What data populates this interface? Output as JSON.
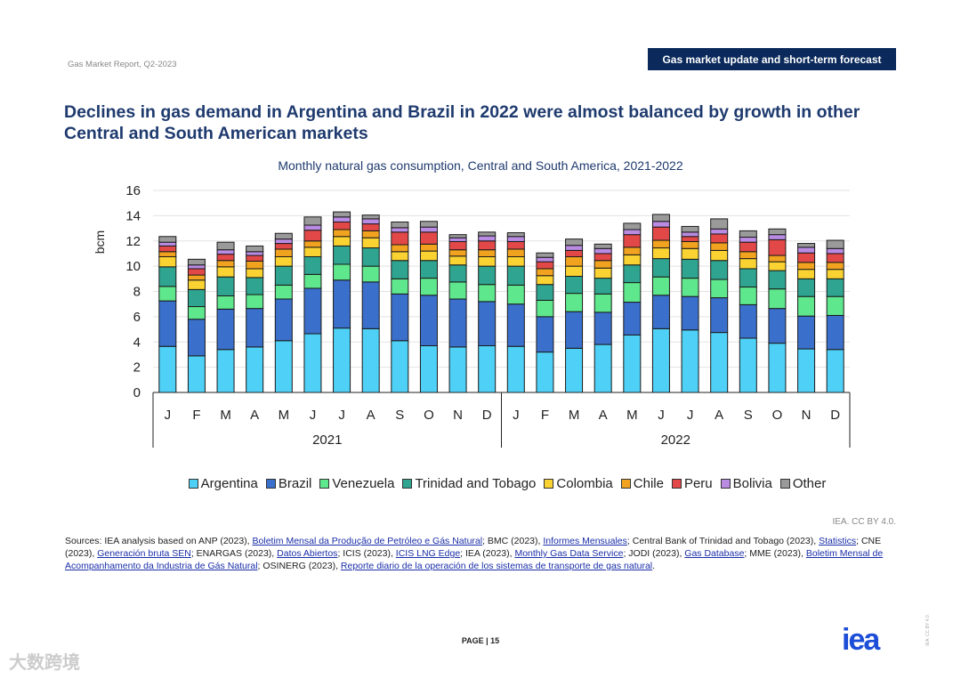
{
  "header": {
    "report": "Gas Market Report, Q2-2023",
    "section": "Gas market update and short-term forecast"
  },
  "title": "Declines in gas demand in Argentina and Brazil in 2022 were almost balanced by growth in other Central and South American markets",
  "chart_data": {
    "type": "bar",
    "stacked": true,
    "title": "Monthly natural gas consumption, Central and South America, 2021-2022",
    "xlabel": "",
    "ylabel": "bcm",
    "ylim": [
      0,
      16
    ],
    "yticks": [
      0,
      2,
      4,
      6,
      8,
      10,
      12,
      14,
      16
    ],
    "grid": true,
    "legend_position": "bottom",
    "categories": [
      "J",
      "F",
      "M",
      "A",
      "M",
      "J",
      "J",
      "A",
      "S",
      "O",
      "N",
      "D",
      "J",
      "F",
      "M",
      "A",
      "M",
      "J",
      "J",
      "A",
      "S",
      "O",
      "N",
      "D"
    ],
    "groups": [
      {
        "label": "2021",
        "span": 12
      },
      {
        "label": "2022",
        "span": 12
      }
    ],
    "series": [
      {
        "name": "Argentina",
        "color": "#4fd0f6",
        "values": [
          3.65,
          2.9,
          3.4,
          3.6,
          4.1,
          4.65,
          5.1,
          5.05,
          4.1,
          3.7,
          3.6,
          3.7,
          3.65,
          3.2,
          3.5,
          3.8,
          4.55,
          5.05,
          4.95,
          4.75,
          4.3,
          3.9,
          3.45,
          3.4
        ]
      },
      {
        "name": "Brazil",
        "color": "#3a6fcb",
        "values": [
          3.6,
          2.9,
          3.2,
          3.05,
          3.3,
          3.6,
          3.8,
          3.7,
          3.7,
          4.0,
          3.8,
          3.5,
          3.35,
          2.8,
          2.9,
          2.55,
          2.6,
          2.65,
          2.65,
          2.75,
          2.65,
          2.75,
          2.6,
          2.7
        ]
      },
      {
        "name": "Venezuela",
        "color": "#5ee78d",
        "values": [
          1.15,
          1.0,
          1.05,
          1.1,
          1.1,
          1.1,
          1.25,
          1.25,
          1.2,
          1.35,
          1.35,
          1.35,
          1.5,
          1.3,
          1.45,
          1.45,
          1.55,
          1.45,
          1.45,
          1.45,
          1.4,
          1.55,
          1.55,
          1.5
        ]
      },
      {
        "name": "Trinidad and Tobago",
        "color": "#2fa490",
        "values": [
          1.55,
          1.35,
          1.5,
          1.35,
          1.5,
          1.4,
          1.45,
          1.45,
          1.45,
          1.4,
          1.35,
          1.45,
          1.5,
          1.25,
          1.35,
          1.25,
          1.4,
          1.45,
          1.5,
          1.5,
          1.45,
          1.45,
          1.4,
          1.4
        ]
      },
      {
        "name": "Colombia",
        "color": "#fad232",
        "values": [
          0.8,
          0.75,
          0.8,
          0.7,
          0.75,
          0.75,
          0.75,
          0.8,
          0.7,
          0.75,
          0.7,
          0.75,
          0.75,
          0.7,
          0.8,
          0.8,
          0.8,
          0.85,
          0.85,
          0.8,
          0.8,
          0.7,
          0.75,
          0.75
        ]
      },
      {
        "name": "Chile",
        "color": "#f1a31f",
        "values": [
          0.4,
          0.4,
          0.5,
          0.6,
          0.6,
          0.5,
          0.55,
          0.55,
          0.55,
          0.55,
          0.5,
          0.55,
          0.6,
          0.55,
          0.75,
          0.6,
          0.6,
          0.6,
          0.55,
          0.6,
          0.55,
          0.5,
          0.55,
          0.55
        ]
      },
      {
        "name": "Peru",
        "color": "#e24848",
        "values": [
          0.45,
          0.5,
          0.5,
          0.45,
          0.45,
          0.85,
          0.6,
          0.55,
          1.0,
          0.95,
          0.65,
          0.7,
          0.6,
          0.55,
          0.5,
          0.55,
          1.0,
          1.05,
          0.4,
          0.7,
          0.75,
          1.25,
          0.75,
          0.7
        ]
      },
      {
        "name": "Bolivia",
        "color": "#b98be2",
        "values": [
          0.3,
          0.3,
          0.35,
          0.3,
          0.35,
          0.4,
          0.4,
          0.4,
          0.35,
          0.4,
          0.3,
          0.4,
          0.4,
          0.35,
          0.4,
          0.4,
          0.4,
          0.45,
          0.35,
          0.4,
          0.4,
          0.4,
          0.45,
          0.4
        ]
      },
      {
        "name": "Other",
        "color": "#9a9a9a",
        "values": [
          0.45,
          0.45,
          0.6,
          0.45,
          0.45,
          0.65,
          0.4,
          0.3,
          0.45,
          0.45,
          0.25,
          0.3,
          0.3,
          0.35,
          0.5,
          0.35,
          0.5,
          0.55,
          0.45,
          0.8,
          0.5,
          0.45,
          0.3,
          0.65
        ]
      }
    ]
  },
  "credit": "IEA. CC BY 4.0.",
  "sources": [
    {
      "text": "Sources: IEA analysis based on ANP (2023), "
    },
    {
      "text": "Boletim Mensal da Produção de Petróleo e Gás Natural",
      "link": true
    },
    {
      "text": "; BMC (2023), "
    },
    {
      "text": "Informes Mensuales",
      "link": true
    },
    {
      "text": "; Central Bank of Trinidad and Tobago (2023), "
    },
    {
      "text": "Statistics",
      "link": true
    },
    {
      "text": "; CNE (2023), "
    },
    {
      "text": "Generación bruta SEN",
      "link": true
    },
    {
      "text": "; ENARGAS (2023), "
    },
    {
      "text": "Datos Abiertos",
      "link": true
    },
    {
      "text": "; ICIS (2023), "
    },
    {
      "text": "ICIS LNG Edge",
      "link": true
    },
    {
      "text": "; IEA (2023), "
    },
    {
      "text": "Monthly Gas Data Service",
      "link": true
    },
    {
      "text": "; JODI (2023), "
    },
    {
      "text": "Gas Database",
      "link": true
    },
    {
      "text": "; MME (2023), "
    },
    {
      "text": "Boletim Mensal de Acompanhamento da Industria de Gás Natural",
      "link": true
    },
    {
      "text": "; OSINERG (2023), "
    },
    {
      "text": "Reporte diario de la operación de los sistemas de transporte de gas natural",
      "link": true
    },
    {
      "text": "."
    }
  ],
  "footer": {
    "page": "PAGE | 15",
    "logo": "iea",
    "side_text": "IEA. CC BY 4.0.",
    "watermark": "大数跨境"
  }
}
